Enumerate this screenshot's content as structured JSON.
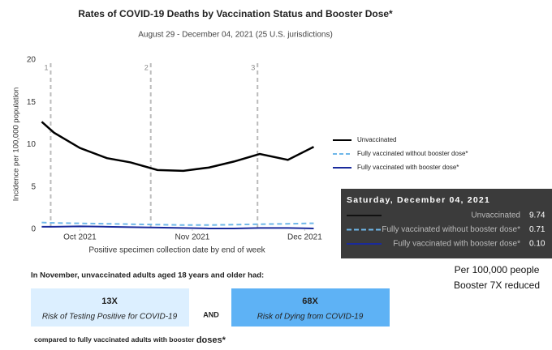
{
  "chart_data": {
    "type": "line",
    "title": "Rates of COVID-19 Deaths by Vaccination Status and Booster Dose*",
    "subtitle": "August 29 - December 04, 2021 (25 U.S. jurisdictions)",
    "x_label": "Positive specimen collection date by end of week",
    "y_label": "Incidence per 100,000 population",
    "xlim": [
      9.65,
      12.12
    ],
    "xticks": [
      {
        "value": 10,
        "label": "Oct 2021"
      },
      {
        "value": 11,
        "label": "Nov 2021"
      },
      {
        "value": 12,
        "label": "Dec 2021"
      }
    ],
    "ylim": [
      0,
      20
    ],
    "yticks": [
      0,
      5,
      10,
      15,
      20
    ],
    "x": [
      9.66,
      9.77,
      10.0,
      10.24,
      10.45,
      10.69,
      10.92,
      11.15,
      11.37,
      11.6,
      11.85,
      12.08
    ],
    "series": [
      {
        "name": "Unvaccinated",
        "color": "#000000",
        "dash": false,
        "values": [
          12.7,
          11.4,
          9.6,
          8.4,
          7.9,
          7.0,
          6.9,
          7.3,
          8.0,
          8.9,
          8.2,
          9.74
        ]
      },
      {
        "name": "Fully vaccinated without booster dose*",
        "color": "#6fb7e9",
        "dash": true,
        "values": [
          0.8,
          0.75,
          0.7,
          0.65,
          0.6,
          0.55,
          0.5,
          0.5,
          0.55,
          0.6,
          0.65,
          0.71
        ]
      },
      {
        "name": "Fully vaccinated with booster dose*",
        "color": "#1a2a9c",
        "dash": false,
        "values": [
          0.3,
          0.3,
          0.35,
          0.3,
          0.25,
          0.2,
          0.15,
          0.1,
          0.1,
          0.15,
          0.15,
          0.1
        ]
      }
    ],
    "annotations": [
      {
        "x": 9.74,
        "label": "1"
      },
      {
        "x": 10.63,
        "label": "2"
      },
      {
        "x": 11.58,
        "label": "3"
      }
    ],
    "tooltip": {
      "title": "Saturday, December 04, 2021",
      "values": [
        9.74,
        0.71,
        0.1
      ],
      "value_labels": [
        "9.74",
        "0.71",
        "0.10"
      ]
    }
  },
  "callout": {
    "heading": "In November, unvaccinated adults aged 18 years and older had:",
    "boxes": [
      {
        "value": "13X",
        "text": "Risk of Testing Positive for COVID-19"
      },
      {
        "value": "68X",
        "text": "Risk of Dying from COVID-19"
      }
    ],
    "connector": "AND",
    "footer": "compared to fully vaccinated adults with booster",
    "footer_emphasis": "doses*"
  },
  "note": [
    "Per 100,000 people",
    "Booster 7X reduced"
  ]
}
